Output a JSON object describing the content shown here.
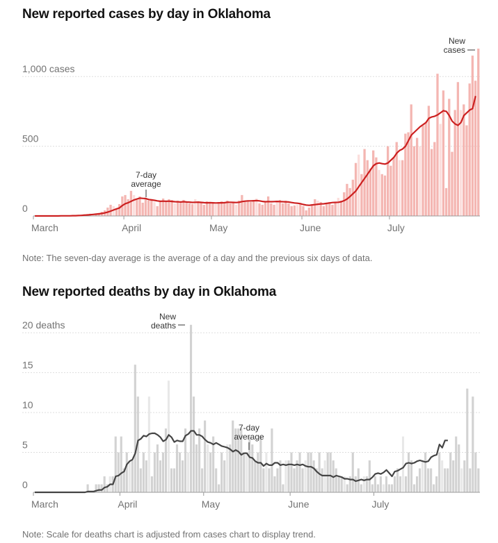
{
  "cases_title": "New reported cases by day in Oklahoma",
  "cases_note": "Note: The seven-day average is the average of a day and the previous six days of data.",
  "deaths_title": "New reported deaths by day in Oklahoma",
  "deaths_note": "Note: Scale for deaths chart is adjusted from cases chart to display trend.",
  "colors": {
    "case_bar": "#f4b6b2",
    "case_bar_light": "#fbdedc",
    "case_line": "#cc1f1f",
    "death_bar": "#d2d2d2",
    "death_bar_light": "#e8e8e8",
    "death_line": "#444444"
  },
  "chart_data": [
    {
      "type": "bar",
      "title": "New reported cases by day in Oklahoma",
      "start_date": "2020-03-01",
      "x_ticks": [
        "March",
        "April",
        "May",
        "June",
        "July"
      ],
      "y_ticks": [
        "0",
        "500",
        "1,000 cases"
      ],
      "y_tick_values": [
        0,
        500,
        1000
      ],
      "ylim": [
        0,
        1250
      ],
      "grid": true,
      "annotations": [
        {
          "line1": "New",
          "line2": "cases"
        },
        {
          "line1": "7-day",
          "line2": "average"
        }
      ],
      "values": [
        0,
        0,
        0,
        0,
        0,
        0,
        0,
        0,
        0,
        1,
        1,
        2,
        2,
        3,
        5,
        6,
        10,
        12,
        14,
        16,
        15,
        18,
        22,
        30,
        40,
        60,
        80,
        70,
        55,
        85,
        140,
        150,
        120,
        180,
        150,
        125,
        140,
        95,
        130,
        110,
        120,
        100,
        70,
        110,
        125,
        100,
        120,
        115,
        90,
        110,
        100,
        115,
        100,
        90,
        85,
        120,
        100,
        95,
        80,
        105,
        100,
        100,
        85,
        95,
        105,
        95,
        110,
        90,
        100,
        80,
        110,
        150,
        110,
        110,
        100,
        110,
        125,
        90,
        80,
        100,
        140,
        90,
        80,
        110,
        115,
        90,
        110,
        90,
        70,
        75,
        80,
        90,
        70,
        40,
        60,
        80,
        120,
        110,
        100,
        70,
        90,
        100,
        80,
        100,
        130,
        110,
        170,
        230,
        200,
        260,
        380,
        440,
        300,
        480,
        400,
        340,
        470,
        420,
        330,
        300,
        290,
        500,
        360,
        420,
        530,
        400,
        400,
        590,
        600,
        800,
        500,
        560,
        500,
        650,
        670,
        790,
        480,
        530,
        1020,
        660,
        900,
        200,
        840,
        460,
        760,
        960,
        760,
        800,
        650,
        950,
        1150,
        970,
        1200
      ],
      "average": [
        0,
        0,
        0,
        0,
        0,
        0,
        0,
        0,
        0,
        1,
        1,
        1,
        1,
        2,
        2,
        3,
        4,
        6,
        7,
        9,
        11,
        13,
        15,
        18,
        22,
        28,
        35,
        43,
        51,
        58,
        75,
        88,
        95,
        105,
        115,
        122,
        128,
        126,
        125,
        118,
        115,
        112,
        108,
        105,
        106,
        105,
        106,
        104,
        102,
        101,
        100,
        102,
        100,
        99,
        97,
        98,
        99,
        97,
        95,
        94,
        95,
        94,
        93,
        94,
        94,
        95,
        98,
        98,
        97,
        96,
        98,
        103,
        106,
        108,
        108,
        109,
        110,
        108,
        104,
        102,
        103,
        102,
        103,
        104,
        103,
        102,
        101,
        100,
        96,
        93,
        91,
        88,
        82,
        78,
        76,
        79,
        81,
        84,
        86,
        87,
        90,
        93,
        96,
        97,
        98,
        102,
        110,
        122,
        140,
        160,
        180,
        210,
        240,
        270,
        300,
        330,
        360,
        375,
        380,
        375,
        372,
        380,
        400,
        420,
        450,
        470,
        480,
        500,
        540,
        580,
        600,
        620,
        640,
        655,
        670,
        700,
        710,
        715,
        725,
        740,
        755,
        750,
        720,
        680,
        660,
        650,
        670,
        720,
        740,
        760,
        770,
        860
      ]
    },
    {
      "type": "bar",
      "title": "New reported deaths by day in Oklahoma",
      "start_date": "2020-03-01",
      "x_ticks": [
        "March",
        "April",
        "May",
        "June",
        "July"
      ],
      "y_ticks": [
        "0",
        "5",
        "10",
        "15",
        "20 deaths"
      ],
      "y_tick_values": [
        0,
        5,
        10,
        15,
        20
      ],
      "ylim": [
        0,
        21.5
      ],
      "grid": true,
      "annotations": [
        {
          "line1": "New",
          "line2": "deaths"
        },
        {
          "line1": "7-day",
          "line2": "average"
        }
      ],
      "values": [
        0,
        0,
        0,
        0,
        0,
        0,
        0,
        0,
        0,
        0,
        0,
        0,
        0,
        0,
        0,
        0,
        0,
        0,
        0,
        1,
        0,
        0,
        1,
        1,
        1,
        2,
        1,
        2,
        2,
        7,
        5,
        7,
        3,
        5,
        4,
        4,
        16,
        12,
        3,
        5,
        4,
        12,
        2,
        5,
        6,
        4,
        5,
        8,
        14,
        3,
        3,
        6,
        5,
        4,
        8,
        5,
        21,
        12,
        6,
        8,
        3,
        9,
        6,
        5,
        7,
        3,
        1,
        5,
        4,
        6,
        6,
        9,
        8,
        8,
        8,
        5,
        5,
        7,
        6,
        4,
        5,
        7,
        3,
        5,
        3,
        8,
        2,
        3,
        4,
        1,
        4,
        4,
        5,
        3,
        4,
        5,
        3,
        4,
        5,
        5,
        4,
        3,
        5,
        3,
        4,
        5,
        5,
        4,
        3,
        2,
        2,
        2,
        1,
        2,
        5,
        2,
        3,
        1,
        2,
        2,
        4,
        1,
        2,
        1,
        2,
        1,
        2,
        1,
        1,
        2,
        3,
        2,
        7,
        2,
        5,
        4,
        1,
        2,
        3,
        4,
        5,
        3,
        3,
        1,
        2,
        5,
        4,
        3,
        3,
        5,
        4,
        7,
        6,
        3,
        4,
        13,
        3,
        12,
        5,
        3
      ],
      "average": [
        0,
        0,
        0,
        0,
        0,
        0,
        0,
        0,
        0,
        0,
        0,
        0,
        0,
        0,
        0,
        0,
        0,
        0,
        0,
        0.1,
        0.1,
        0.1,
        0.2,
        0.3,
        0.3,
        0.6,
        0.7,
        1.0,
        1.0,
        2.0,
        2.1,
        2.4,
        2.6,
        3.5,
        3.9,
        4.1,
        4.9,
        6.5,
        6.7,
        7.1,
        7.0,
        7.3,
        7.4,
        7.4,
        7.2,
        6.9,
        6.4,
        6.6,
        7.2,
        6.9,
        6.3,
        6.5,
        6.4,
        6.4,
        7.1,
        7.3,
        7.7,
        7.7,
        7.2,
        7.2,
        7.0,
        6.6,
        6.3,
        6.2,
        6.0,
        6.2,
        6.0,
        5.8,
        5.7,
        5.6,
        5.4,
        5.1,
        5.3,
        5.1,
        4.7,
        4.9,
        4.9,
        4.4,
        4.3,
        3.9,
        3.7,
        3.7,
        3.3,
        3.6,
        3.4,
        3.4,
        3.7,
        3.7,
        3.4,
        3.5,
        3.4,
        3.5,
        3.5,
        3.4,
        3.5,
        3.4,
        3.5,
        3.3,
        3.2,
        3.2,
        3.0,
        2.6,
        2.3,
        2.1,
        2.1,
        2.1,
        2.1,
        1.9,
        2.1,
        2.0,
        1.9,
        1.7,
        1.7,
        1.6,
        1.6,
        1.4,
        1.5,
        1.6,
        1.5,
        1.6,
        1.6,
        1.9,
        2.3,
        2.4,
        2.3,
        2.5,
        2.8,
        2.4,
        2.0,
        2.6,
        2.7,
        2.9,
        3.1,
        3.6,
        3.7,
        3.6,
        3.7,
        3.9,
        4.0,
        3.9,
        3.8,
        3.9,
        4.4,
        4.6,
        4.7,
        6.0,
        5.6,
        6.5,
        6.5
      ]
    }
  ]
}
